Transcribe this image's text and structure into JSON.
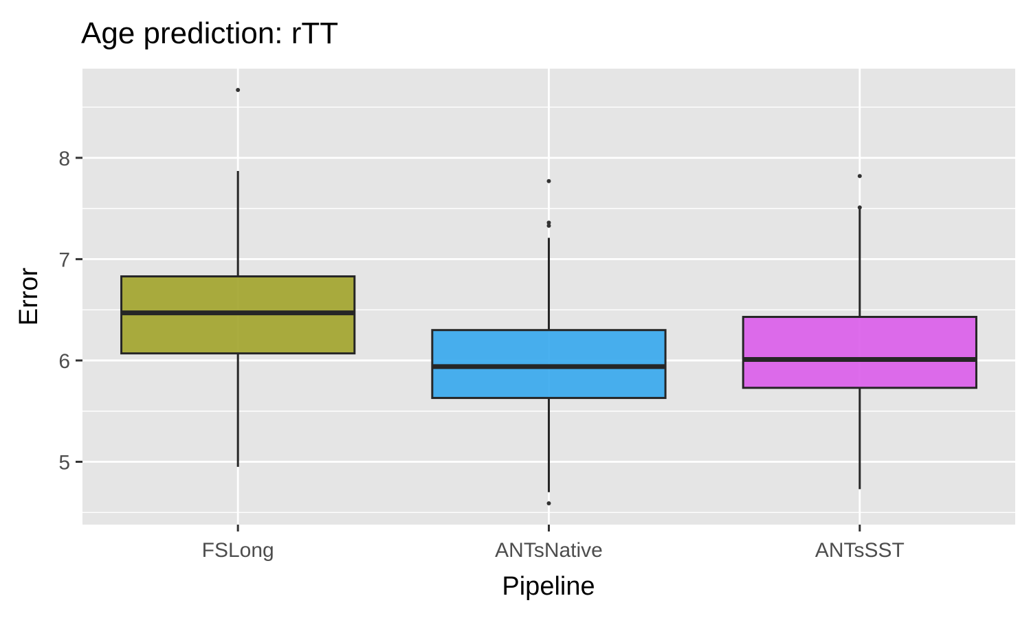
{
  "chart_data": {
    "type": "boxplot",
    "title": "Age prediction: rTT",
    "xlabel": "Pipeline",
    "ylabel": "Error",
    "ylim": [
      4.38,
      8.88
    ],
    "yticks": [
      5,
      6,
      7,
      8
    ],
    "ytick_labels": [
      "5",
      "6",
      "7",
      "8"
    ],
    "grid": true,
    "categories": [
      "FSLong",
      "ANTsNative",
      "ANTsSST"
    ],
    "boxes": [
      {
        "category": "FSLong",
        "color": "#a3a52f",
        "q1": 6.07,
        "median": 6.47,
        "q3": 6.83,
        "whisker_low": 4.95,
        "whisker_high": 7.87,
        "outliers": [
          8.67
        ]
      },
      {
        "category": "ANTsNative",
        "color": "#39a9ee",
        "q1": 5.63,
        "median": 5.94,
        "q3": 6.3,
        "whisker_low": 4.7,
        "whisker_high": 7.21,
        "outliers": [
          7.77,
          7.36,
          7.33,
          4.59
        ]
      },
      {
        "category": "ANTsSST",
        "color": "#db60ea",
        "q1": 5.73,
        "median": 6.01,
        "q3": 6.43,
        "whisker_low": 4.73,
        "whisker_high": 7.5,
        "outliers": [
          7.82,
          7.51
        ]
      }
    ]
  }
}
